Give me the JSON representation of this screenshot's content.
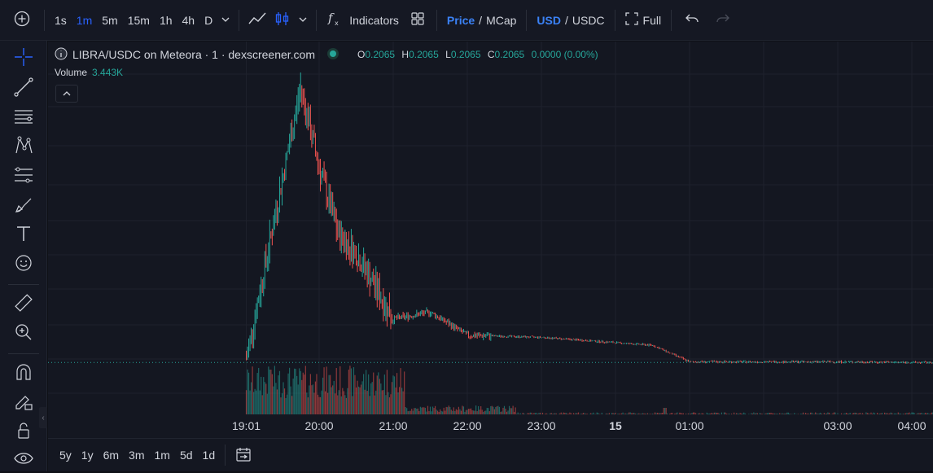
{
  "toolbar": {
    "intervals": [
      "1s",
      "1m",
      "5m",
      "15m",
      "1h",
      "4h",
      "D"
    ],
    "active_interval": "1m",
    "indicators_label": "Indicators",
    "price_label": "Price",
    "mcap_label": "MCap",
    "usd_label": "USD",
    "usdc_label": "USDC",
    "separator": "/",
    "full_label": "Full"
  },
  "legend": {
    "symbol": "LIBRA/USDC on Meteora · 1 · dexscreener.com",
    "open_key": "O",
    "open": "0.2065",
    "high_key": "H",
    "high": "0.2065",
    "low_key": "L",
    "low": "0.2065",
    "close_key": "C",
    "close": "0.2065",
    "change": "0.0000 (0.00%)",
    "volume_label": "Volume",
    "volume_value": "3.443K"
  },
  "chart_data": {
    "type": "candlestick",
    "x_tick_labels": [
      "19:01",
      "20:00",
      "21:00",
      "22:00",
      "23:00",
      "15",
      "01:00",
      "03:00",
      "04:00"
    ],
    "series": [
      {
        "x": "19:01",
        "y": 0.5
      },
      {
        "x": "19:30",
        "y": 3.2
      },
      {
        "x": "19:45",
        "y": 4.6
      },
      {
        "x": "20:00",
        "y": 3.4
      },
      {
        "x": "20:15",
        "y": 2.4
      },
      {
        "x": "20:30",
        "y": 2.1
      },
      {
        "x": "21:00",
        "y": 1.1
      },
      {
        "x": "21:30",
        "y": 1.2
      },
      {
        "x": "22:00",
        "y": 0.85
      },
      {
        "x": "23:00",
        "y": 0.82
      },
      {
        "x": "00:30",
        "y": 0.7
      },
      {
        "x": "01:00",
        "y": 0.45
      },
      {
        "x": "03:00",
        "y": 0.45
      },
      {
        "x": "04:00",
        "y": 0.44
      }
    ],
    "up_color": "#26a69a",
    "down_color": "#ef5350",
    "grid": true
  },
  "range_bar": {
    "ranges": [
      "5y",
      "1y",
      "6m",
      "3m",
      "1m",
      "5d",
      "1d"
    ]
  },
  "colors": {
    "accent": "#2962ff",
    "up": "#26a69a",
    "down": "#ef5350",
    "background": "#141721"
  }
}
